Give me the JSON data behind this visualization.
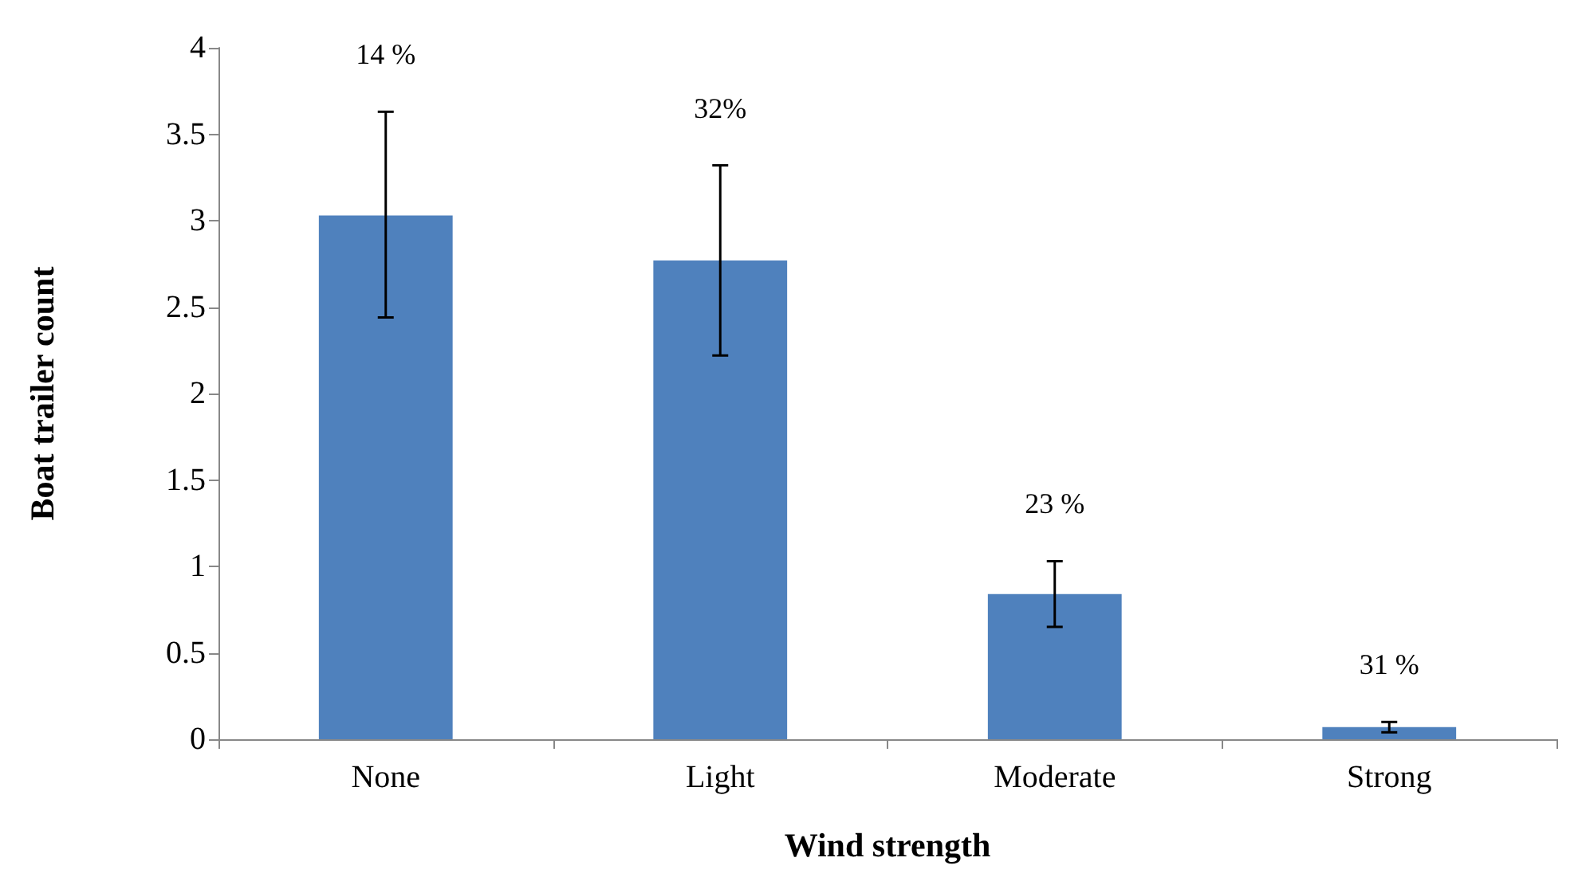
{
  "chart_data": {
    "type": "bar",
    "xlabel": "Wind strength",
    "ylabel": "Boat trailer count",
    "categories": [
      "None",
      "Light",
      "Moderate",
      "Strong"
    ],
    "values": [
      3.03,
      2.77,
      0.84,
      0.07
    ],
    "color": "#4f81bd",
    "errors": [
      [
        2.44,
        3.63
      ],
      [
        2.22,
        3.32
      ],
      [
        0.65,
        1.03
      ],
      [
        0.04,
        0.1
      ]
    ],
    "annotations": [
      "14 %",
      "32%",
      "23 %",
      "31 %"
    ],
    "ylim": [
      0,
      4
    ],
    "yticks": [
      0,
      0.5,
      1,
      1.5,
      2,
      2.5,
      3,
      3.5,
      4
    ],
    "grid": false
  }
}
